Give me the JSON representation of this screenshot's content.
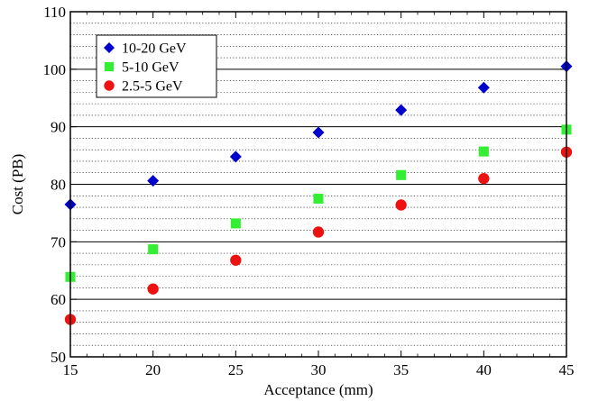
{
  "chart_data": {
    "type": "scatter",
    "xlabel": "Acceptance (mm)",
    "ylabel": "Cost (PB)",
    "xlim": [
      15,
      45
    ],
    "ylim": [
      50,
      110
    ],
    "xticks": [
      15,
      20,
      25,
      30,
      35,
      40,
      45
    ],
    "yticks": [
      50,
      60,
      70,
      80,
      90,
      100,
      110
    ],
    "x_tick_labels": [
      "15",
      "20",
      "25",
      "30",
      "35",
      "40",
      "45"
    ],
    "y_tick_labels": [
      "50",
      "60",
      "70",
      "80",
      "90",
      "100",
      "110"
    ],
    "grid": {
      "major_y": true,
      "minor_y": true,
      "major_y_step": 10,
      "minor_y_step": 2,
      "minor_style": "dotted"
    },
    "legend_position": "top-left",
    "series": [
      {
        "name": "10-20 GeV",
        "marker": "diamond",
        "color": "#0000cc",
        "x": [
          15,
          20,
          25,
          30,
          35,
          40,
          45
        ],
        "y": [
          76.5,
          80.6,
          84.8,
          89.0,
          92.9,
          96.8,
          100.5
        ]
      },
      {
        "name": "5-10 GeV",
        "marker": "square",
        "color": "#33ee33",
        "x": [
          15,
          20,
          25,
          30,
          35,
          40,
          45
        ],
        "y": [
          63.9,
          68.7,
          73.2,
          77.5,
          81.6,
          85.7,
          89.5
        ]
      },
      {
        "name": "2.5-5 GeV",
        "marker": "circle",
        "color": "#ee1111",
        "x": [
          15,
          20,
          25,
          30,
          35,
          40,
          45
        ],
        "y": [
          56.5,
          61.8,
          66.8,
          71.7,
          76.4,
          81.0,
          85.6
        ]
      }
    ]
  }
}
